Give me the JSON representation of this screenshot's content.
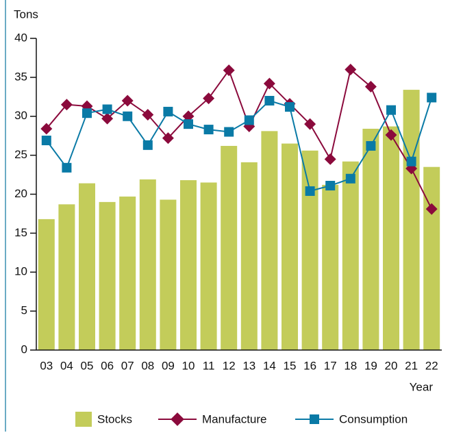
{
  "chart_data": {
    "type": "bar",
    "y_label": "Tons",
    "x_label": "Year",
    "categories": [
      "03",
      "04",
      "05",
      "06",
      "07",
      "08",
      "09",
      "10",
      "11",
      "12",
      "13",
      "14",
      "15",
      "16",
      "17",
      "18",
      "19",
      "20",
      "21",
      "22"
    ],
    "series": [
      {
        "name": "Stocks",
        "type": "bar",
        "color": "#c3cc5a",
        "values": [
          16.8,
          18.7,
          21.4,
          19.0,
          19.7,
          21.9,
          19.3,
          21.8,
          21.5,
          26.2,
          24.1,
          28.1,
          26.5,
          25.6,
          21.2,
          24.2,
          28.4,
          28.7,
          33.4,
          23.5
        ]
      },
      {
        "name": "Manufacture",
        "type": "line",
        "marker": "diamond",
        "color": "#8b0a3c",
        "values": [
          28.4,
          31.5,
          31.3,
          29.7,
          32.0,
          30.2,
          27.2,
          30.0,
          32.3,
          35.9,
          28.7,
          34.2,
          31.6,
          29.0,
          24.5,
          36.0,
          33.8,
          27.6,
          23.3,
          18.1
        ]
      },
      {
        "name": "Consumption",
        "type": "line",
        "marker": "square",
        "color": "#0a7aa6",
        "values": [
          26.9,
          23.4,
          30.4,
          30.9,
          30.0,
          26.3,
          30.6,
          29.0,
          28.3,
          28.0,
          29.5,
          32.0,
          31.2,
          20.4,
          21.1,
          22.0,
          26.2,
          30.8,
          24.2,
          32.4
        ]
      }
    ],
    "ylim": [
      0,
      40
    ],
    "yticks": [
      0,
      5,
      10,
      15,
      20,
      25,
      30,
      35,
      40
    ],
    "legend": "bottom"
  }
}
